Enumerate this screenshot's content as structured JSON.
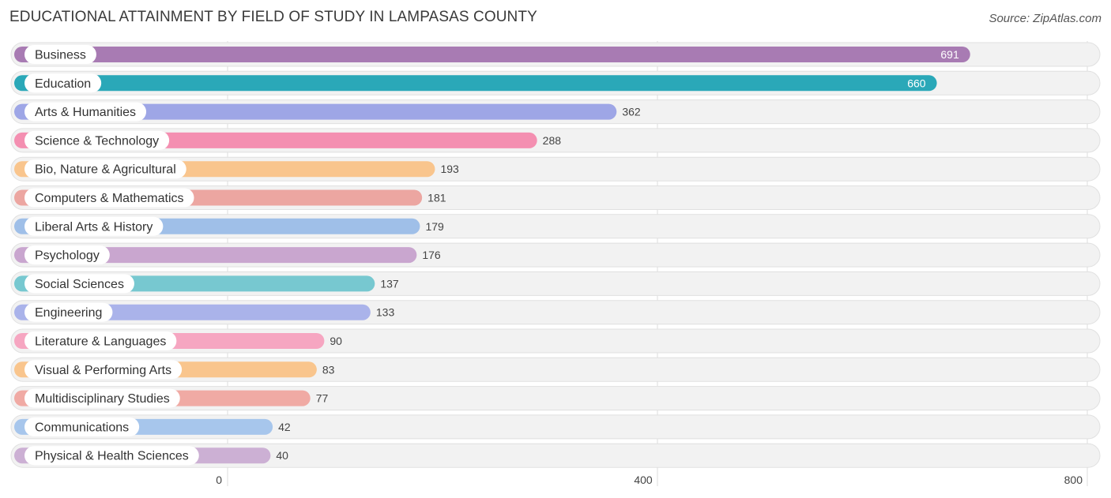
{
  "title": "EDUCATIONAL ATTAINMENT BY FIELD OF STUDY IN LAMPASAS COUNTY",
  "source": "Source: ZipAtlas.com",
  "chart_data": {
    "type": "bar",
    "orientation": "horizontal",
    "title": "EDUCATIONAL ATTAINMENT BY FIELD OF STUDY IN LAMPASAS COUNTY",
    "xlabel": "",
    "ylabel": "",
    "xlim": [
      0,
      800
    ],
    "ticks": [
      0,
      400,
      800
    ],
    "grid": true,
    "categories": [
      "Business",
      "Education",
      "Arts & Humanities",
      "Science & Technology",
      "Bio, Nature & Agricultural",
      "Computers & Mathematics",
      "Liberal Arts & History",
      "Psychology",
      "Social Sciences",
      "Engineering",
      "Literature & Languages",
      "Visual & Performing Arts",
      "Multidisciplinary Studies",
      "Communications",
      "Physical & Health Sciences"
    ],
    "values": [
      691,
      660,
      362,
      288,
      193,
      181,
      179,
      176,
      137,
      133,
      90,
      83,
      77,
      42,
      40
    ],
    "colors": [
      "#a87bb3",
      "#2aa8b8",
      "#9ea6e6",
      "#f48fb1",
      "#f9c58d",
      "#eca6a1",
      "#9fbfe8",
      "#c9a6cf",
      "#77c8d0",
      "#aab3ea",
      "#f6a6c1",
      "#f9c58d",
      "#f0aaa4",
      "#a7c6ec",
      "#ccb0d4"
    ]
  }
}
